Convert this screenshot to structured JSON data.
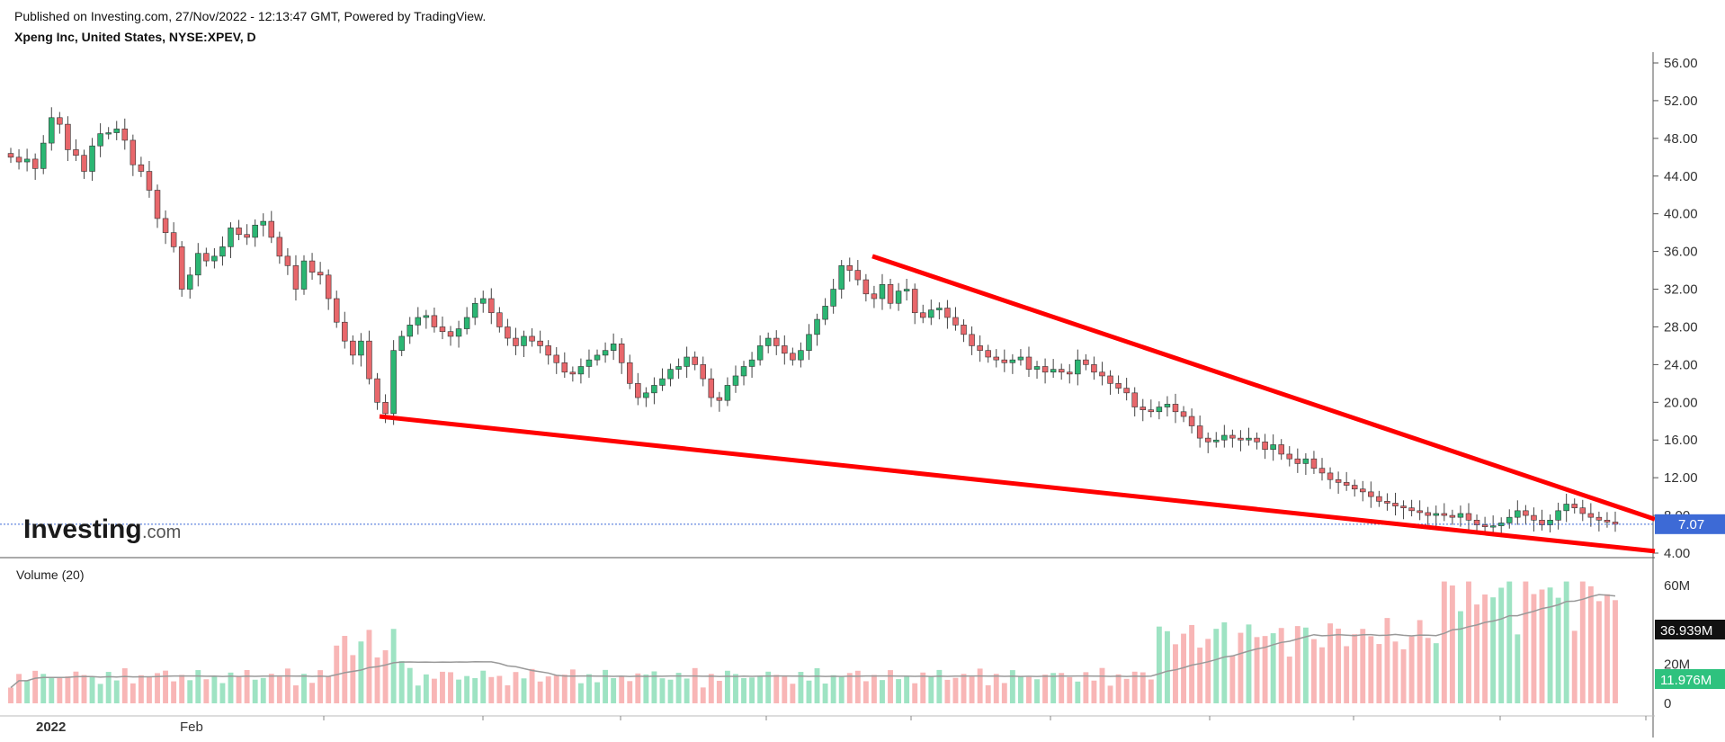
{
  "header": {
    "published": "Published on Investing.com, 27/Nov/2022 - 12:13:47 GMT, Powered by TradingView.",
    "instrument": "Xpeng Inc, United States, NYSE:XPEV, D"
  },
  "logo": {
    "main": "Investing",
    "suffix": ".com"
  },
  "colors": {
    "up": "#26a69a",
    "up_body": "#2bb673",
    "down": "#ef5350",
    "down_body": "#e8676b",
    "trendline": "#ff0000",
    "vol_up": "#9ee3c3",
    "vol_down": "#f8b6b6",
    "vol_ma": "#999999",
    "price_tag": "#3d6ad6"
  },
  "chart_data": [
    {
      "type": "candlestick",
      "name": "price",
      "ylim": [
        4,
        56
      ],
      "yticks": [
        "56.00",
        "52.00",
        "48.00",
        "44.00",
        "40.00",
        "36.00",
        "32.00",
        "28.00",
        "24.00",
        "20.00",
        "16.00",
        "12.00",
        "8.00",
        "4.00"
      ],
      "xtick_labels": [
        "2022",
        "Feb"
      ],
      "last_price": "7.07",
      "closes": [
        46.0,
        45.5,
        45.8,
        44.8,
        47.5,
        50.2,
        49.5,
        46.8,
        46.2,
        44.5,
        47.2,
        48.5,
        48.6,
        49.0,
        47.8,
        45.2,
        44.5,
        42.5,
        39.5,
        38.0,
        36.5,
        32.0,
        33.5,
        35.8,
        35.0,
        35.5,
        36.5,
        38.5,
        37.8,
        37.5,
        38.8,
        39.2,
        37.5,
        35.5,
        34.5,
        32.0,
        35.0,
        33.8,
        33.5,
        31.0,
        28.5,
        26.5,
        25.0,
        26.5,
        22.5,
        20.0,
        18.8,
        25.5,
        27.0,
        28.2,
        29.0,
        29.2,
        28.0,
        27.5,
        27.0,
        27.8,
        29.0,
        30.5,
        31.0,
        29.5,
        28.0,
        26.8,
        26.0,
        27.0,
        26.5,
        26.0,
        25.0,
        24.2,
        23.2,
        23.0,
        23.8,
        24.5,
        25.0,
        25.5,
        26.2,
        24.2,
        22.0,
        20.5,
        21.0,
        21.8,
        22.5,
        23.5,
        23.8,
        24.8,
        24.0,
        22.5,
        20.5,
        20.2,
        21.8,
        22.8,
        23.8,
        24.5,
        26.0,
        26.8,
        26.0,
        25.2,
        24.5,
        25.5,
        27.2,
        28.8,
        30.2,
        32.0,
        34.5,
        34.0,
        33.0,
        31.5,
        31.0,
        32.5,
        30.5,
        31.8,
        32.0,
        29.5,
        29.0,
        29.8,
        30.0,
        29.0,
        28.2,
        27.2,
        26.0,
        25.5,
        24.8,
        24.5,
        24.2,
        24.5,
        24.8,
        23.5,
        23.8,
        23.2,
        23.5,
        23.2,
        23.0,
        24.5,
        24.0,
        23.2,
        22.8,
        22.0,
        21.5,
        21.0,
        19.5,
        19.2,
        19.0,
        19.5,
        19.8,
        19.0,
        18.5,
        17.5,
        16.2,
        15.8,
        16.0,
        16.5,
        16.2,
        16.0,
        16.2,
        15.8,
        15.0,
        15.5,
        14.5,
        14.0,
        13.5,
        14.0,
        13.0,
        12.5,
        11.8,
        11.5,
        11.2,
        10.8,
        10.5,
        10.0,
        9.5,
        9.3,
        9.0,
        8.8,
        8.5,
        8.3,
        8.0,
        8.2,
        8.0,
        7.8,
        8.2,
        7.5,
        7.0,
        6.8,
        6.9,
        7.2,
        7.8,
        8.5,
        8.0,
        7.5,
        7.0,
        7.5,
        8.5,
        9.2,
        8.8,
        8.2,
        7.8,
        7.5,
        7.3,
        7.07
      ]
    },
    {
      "type": "bar",
      "name": "Volume (20)",
      "title": "Volume (20)",
      "ylim": [
        0,
        65
      ],
      "ytick_labels": [
        "60M",
        "20M",
        "0"
      ],
      "ma_label": "36.939M",
      "last_label": "11.976M"
    }
  ]
}
